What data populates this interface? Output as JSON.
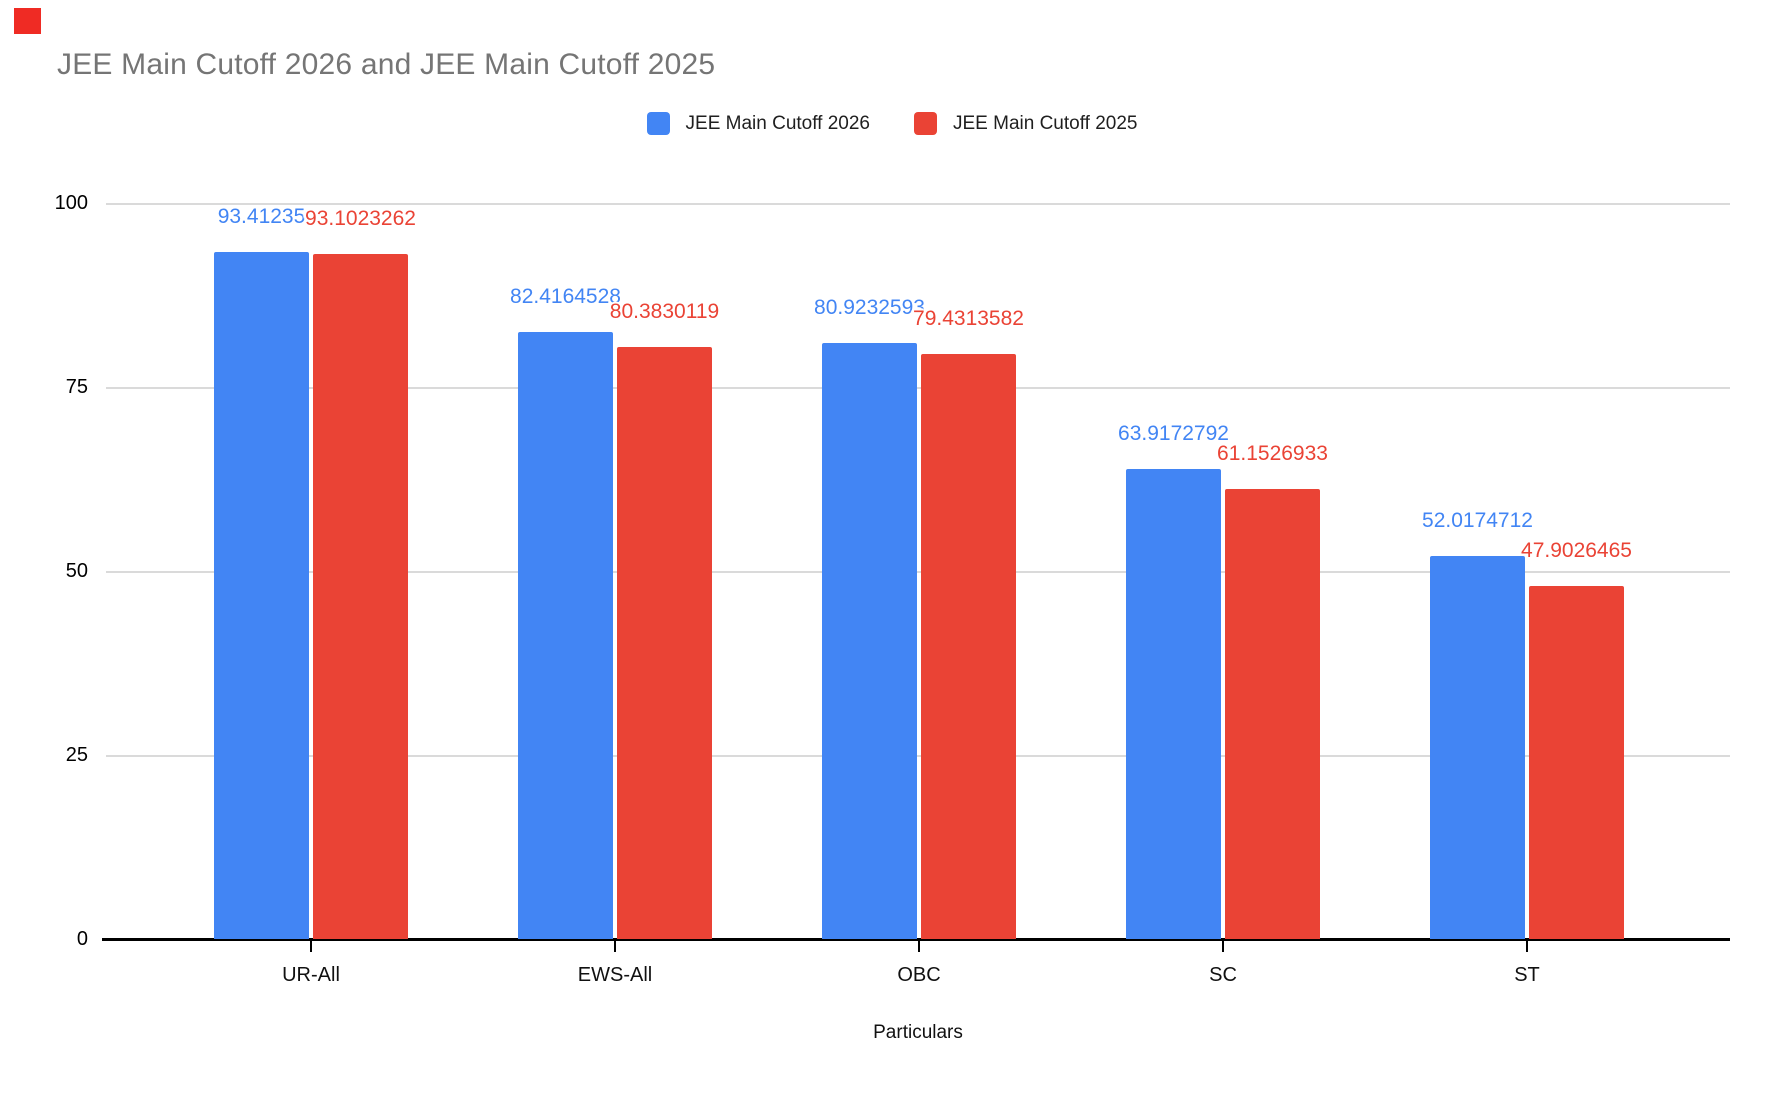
{
  "corner_marker": {
    "color": "#ef2b24"
  },
  "title": "JEE Main Cutoff 2026 and JEE Main Cutoff 2025",
  "legend": {
    "items": [
      {
        "label": "JEE Main Cutoff 2026",
        "color": "#4285f4"
      },
      {
        "label": "JEE Main Cutoff 2025",
        "color": "#ea4335"
      }
    ]
  },
  "chart_data": {
    "type": "bar",
    "title": "JEE Main Cutoff 2026 and JEE Main Cutoff 2025",
    "xlabel": "Particulars",
    "ylabel": "",
    "categories": [
      "UR-All",
      "EWS-All",
      "OBC",
      "SC",
      "ST"
    ],
    "series": [
      {
        "name": "JEE Main Cutoff 2026",
        "color": "#4285f4",
        "values": [
          93.41235,
          82.4164528,
          80.9232593,
          63.9172792,
          52.0174712
        ],
        "labels": [
          "93.41235",
          "82.4164528",
          "80.9232593",
          "63.9172792",
          "52.0174712"
        ]
      },
      {
        "name": "JEE Main Cutoff 2025",
        "color": "#ea4335",
        "values": [
          93.1023262,
          80.3830119,
          79.4313582,
          61.1526933,
          47.9026465
        ],
        "labels": [
          "93.1023262",
          "80.3830119",
          "79.4313582",
          "61.1526933",
          "47.9026465"
        ]
      }
    ],
    "ylim": [
      0,
      100
    ],
    "yticks": [
      0,
      25,
      50,
      75,
      100
    ],
    "grid": true,
    "legend_position": "top",
    "data_labels": true
  }
}
